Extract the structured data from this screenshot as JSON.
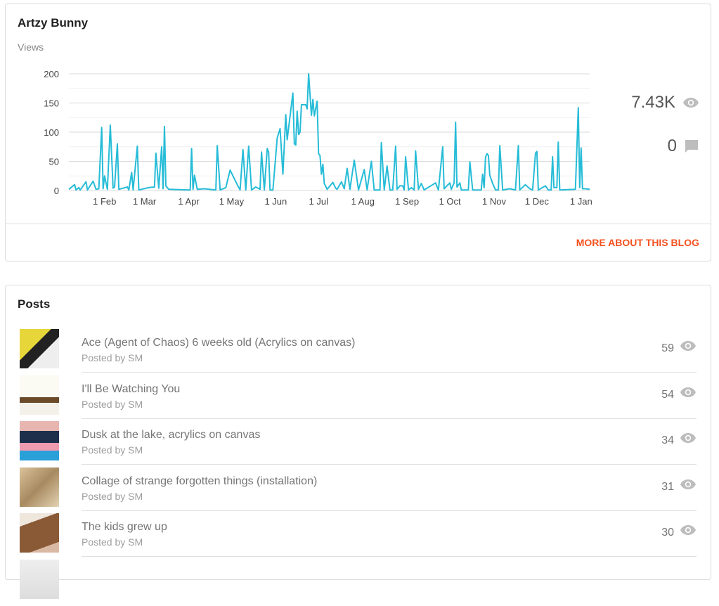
{
  "blog": {
    "title": "Artzy Bunny",
    "views_label": "Views",
    "total_views": "7.43K",
    "total_comments": "0",
    "more_link": "MORE ABOUT THIS BLOG",
    "accent_color": "#f4511e"
  },
  "chart_data": {
    "type": "line",
    "ylabel": "Views",
    "ylim": [
      0,
      200
    ],
    "yticks": [
      "0",
      "50",
      "100",
      "150",
      "200"
    ],
    "xticks": [
      "1 Feb",
      "1 Mar",
      "1 Apr",
      "1 May",
      "1 Jun",
      "1 Jul",
      "1 Aug",
      "1 Sep",
      "1 Oct",
      "1 Nov",
      "1 Dec",
      "1 Jan"
    ],
    "grid": true,
    "line_color": "#26bcd7",
    "points": [
      [
        "Jan 7",
        2
      ],
      [
        "Jan 11",
        10
      ],
      [
        "Jan 12",
        1
      ],
      [
        "Jan 14",
        5
      ],
      [
        "Jan 15",
        1
      ],
      [
        "Jan 19",
        15
      ],
      [
        "Jan 20",
        1
      ],
      [
        "Jan 24",
        16
      ],
      [
        "Jan 26",
        2
      ],
      [
        "Jan 28",
        3
      ],
      [
        "Jan 30",
        108
      ],
      [
        "Jan 31",
        3
      ],
      [
        "Feb 1",
        25
      ],
      [
        "Feb 3",
        2
      ],
      [
        "Feb 5",
        112
      ],
      [
        "Feb 7",
        4
      ],
      [
        "Feb 8",
        6
      ],
      [
        "Feb 10",
        80
      ],
      [
        "Feb 11",
        2
      ],
      [
        "Feb 14",
        4
      ],
      [
        "Feb 17",
        6
      ],
      [
        "Feb 18",
        1
      ],
      [
        "Feb 20",
        31
      ],
      [
        "Feb 21",
        1
      ],
      [
        "Feb 24",
        76
      ],
      [
        "Feb 25",
        1
      ],
      [
        "Mar 4",
        5
      ],
      [
        "Mar 8",
        6
      ],
      [
        "Mar 9",
        64
      ],
      [
        "Mar 11",
        4
      ],
      [
        "Mar 13",
        75
      ],
      [
        "Mar 14",
        3
      ],
      [
        "Mar 15",
        110
      ],
      [
        "Mar 16",
        8
      ],
      [
        "Mar 18",
        2
      ],
      [
        "Apr 2",
        1
      ],
      [
        "Apr 3",
        72
      ],
      [
        "Apr 4",
        2
      ],
      [
        "Apr 5",
        26
      ],
      [
        "Apr 7",
        2
      ],
      [
        "Apr 12",
        3
      ],
      [
        "Apr 20",
        1
      ],
      [
        "Apr 21",
        77
      ],
      [
        "Apr 23",
        1
      ],
      [
        "Apr 27",
        5
      ],
      [
        "Apr 30",
        35
      ],
      [
        "May 3",
        20
      ],
      [
        "May 5",
        10
      ],
      [
        "May 7",
        1
      ],
      [
        "May 9",
        70
      ],
      [
        "May 11",
        1
      ],
      [
        "May 13",
        76
      ],
      [
        "May 15",
        1
      ],
      [
        "May 18",
        6
      ],
      [
        "May 21",
        2
      ],
      [
        "May 22",
        66
      ],
      [
        "May 24",
        1
      ],
      [
        "May 26",
        72
      ],
      [
        "May 27",
        66
      ],
      [
        "May 28",
        1
      ],
      [
        "May 30",
        1
      ],
      [
        "Jun 2",
        90
      ],
      [
        "Jun 4",
        106
      ],
      [
        "Jun 6",
        28
      ],
      [
        "Jun 8",
        130
      ],
      [
        "Jun 9",
        87
      ],
      [
        "Jun 13",
        167
      ],
      [
        "Jun 14",
        80
      ],
      [
        "Jun 15",
        78
      ],
      [
        "Jun 16",
        136
      ],
      [
        "Jun 17",
        96
      ],
      [
        "Jun 18",
        100
      ],
      [
        "Jun 19",
        147
      ],
      [
        "Jun 22",
        147
      ],
      [
        "Jun 23",
        140
      ],
      [
        "Jun 24",
        200
      ],
      [
        "Jun 26",
        129
      ],
      [
        "Jun 27",
        156
      ],
      [
        "Jun 28",
        128
      ],
      [
        "Jun 30",
        153
      ],
      [
        "Jul 1",
        63
      ],
      [
        "Jul 2",
        60
      ],
      [
        "Jul 3",
        28
      ],
      [
        "Jul 4",
        45
      ],
      [
        "Jul 5",
        12
      ],
      [
        "Jul 7",
        2
      ],
      [
        "Jul 11",
        14
      ],
      [
        "Jul 13",
        4
      ],
      [
        "Jul 14",
        2
      ],
      [
        "Jul 17",
        15
      ],
      [
        "Jul 19",
        3
      ],
      [
        "Jul 21",
        38
      ],
      [
        "Jul 23",
        2
      ],
      [
        "Jul 26",
        52
      ],
      [
        "Jul 29",
        1
      ],
      [
        "Aug 2",
        36
      ],
      [
        "Aug 4",
        1
      ],
      [
        "Aug 7",
        50
      ],
      [
        "Aug 9",
        1
      ],
      [
        "Aug 13",
        1
      ],
      [
        "Aug 14",
        82
      ],
      [
        "Aug 16",
        1
      ],
      [
        "Aug 18",
        42
      ],
      [
        "Aug 20",
        1
      ],
      [
        "Aug 22",
        1
      ],
      [
        "Aug 24",
        76
      ],
      [
        "Aug 25",
        2
      ],
      [
        "Aug 27",
        8
      ],
      [
        "Aug 29",
        8
      ],
      [
        "Aug 30",
        1
      ],
      [
        "Aug 31",
        58
      ],
      [
        "Sep 2",
        1
      ],
      [
        "Sep 4",
        5
      ],
      [
        "Sep 6",
        1
      ],
      [
        "Sep 7",
        68
      ],
      [
        "Sep 9",
        2
      ],
      [
        "Sep 11",
        12
      ],
      [
        "Sep 13",
        1
      ],
      [
        "Sep 21",
        13
      ],
      [
        "Sep 23",
        1
      ],
      [
        "Sep 26",
        75
      ],
      [
        "Sep 27",
        3
      ],
      [
        "Oct 1",
        13
      ],
      [
        "Oct 2",
        2
      ],
      [
        "Oct 4",
        13
      ],
      [
        "Oct 5",
        117
      ],
      [
        "Oct 6",
        6
      ],
      [
        "Oct 8",
        13
      ],
      [
        "Oct 9",
        1
      ],
      [
        "Oct 14",
        1
      ],
      [
        "Oct 15",
        49
      ],
      [
        "Oct 17",
        1
      ],
      [
        "Oct 23",
        1
      ],
      [
        "Oct 24",
        28
      ],
      [
        "Oct 25",
        5
      ],
      [
        "Oct 26",
        57
      ],
      [
        "Oct 27",
        63
      ],
      [
        "Oct 28",
        60
      ],
      [
        "Oct 29",
        26
      ],
      [
        "Oct 31",
        12
      ],
      [
        "Nov 2",
        1
      ],
      [
        "Nov 4",
        1
      ],
      [
        "Nov 5",
        77
      ],
      [
        "Nov 7",
        1
      ],
      [
        "Nov 12",
        3
      ],
      [
        "Nov 16",
        1
      ],
      [
        "Nov 18",
        77
      ],
      [
        "Nov 19",
        1
      ],
      [
        "Nov 23",
        10
      ],
      [
        "Nov 26",
        3
      ],
      [
        "Nov 28",
        1
      ],
      [
        "Nov 30",
        64
      ],
      [
        "Dec 1",
        67
      ],
      [
        "Dec 2",
        1
      ],
      [
        "Dec 7",
        8
      ],
      [
        "Dec 9",
        1
      ],
      [
        "Dec 11",
        1
      ],
      [
        "Dec 12",
        58
      ],
      [
        "Dec 13",
        5
      ],
      [
        "Dec 15",
        5
      ],
      [
        "Dec 16",
        83
      ],
      [
        "Dec 17",
        1
      ],
      [
        "Dec 28",
        2
      ],
      [
        "Dec 30",
        142
      ],
      [
        "Dec 31",
        5
      ],
      [
        "Jan 1",
        73
      ],
      [
        "Jan 2",
        3
      ],
      [
        "Jan 4",
        3
      ],
      [
        "Jan 7",
        2
      ]
    ]
  },
  "posts": {
    "title": "Posts",
    "items": [
      {
        "title": "Ace (Agent of Chaos) 6 weeks old (Acrylics on canvas)",
        "byline": "Posted by SM",
        "views": "59"
      },
      {
        "title": "I'll Be Watching You",
        "byline": "Posted by SM",
        "views": "54"
      },
      {
        "title": "Dusk at the lake, acrylics on canvas",
        "byline": "Posted by SM",
        "views": "34"
      },
      {
        "title": "Collage of strange forgotten things (installation)",
        "byline": "Posted by SM",
        "views": "31"
      },
      {
        "title": "The kids grew up",
        "byline": "Posted by SM",
        "views": "30"
      },
      {
        "title": "",
        "byline": "",
        "views": ""
      }
    ]
  }
}
